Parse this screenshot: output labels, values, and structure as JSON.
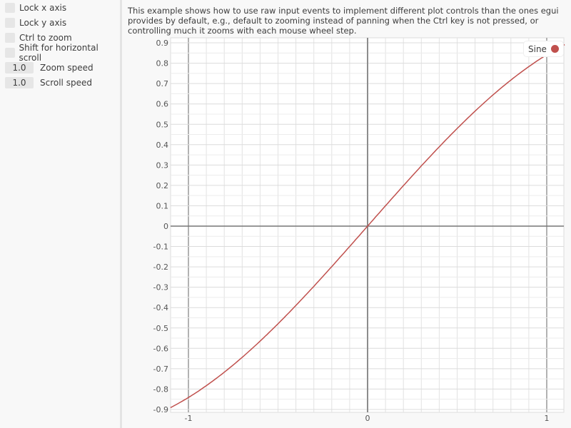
{
  "sidebar": {
    "checkboxes": [
      {
        "label": "Lock x axis",
        "checked": false
      },
      {
        "label": "Lock y axis",
        "checked": false
      },
      {
        "label": "Ctrl to zoom",
        "checked": false
      },
      {
        "label": "Shift for horizontal scroll",
        "checked": false
      }
    ],
    "drag_values": [
      {
        "value": "1.0",
        "label": "Zoom speed"
      },
      {
        "value": "1.0",
        "label": "Scroll speed"
      }
    ]
  },
  "description": "This example shows how to use raw input events to implement different plot controls than the ones egui provides by default, e.g., default to zooming instead of panning when the Ctrl key is not pressed, or controlling much it zooms with each mouse wheel step.",
  "legend": {
    "label": "Sine",
    "color": "#c0504d"
  },
  "chart_data": {
    "type": "line",
    "series": [
      {
        "name": "Sine",
        "function": "sin(x)",
        "color": "#c0504d"
      }
    ],
    "xlim": [
      -1.1,
      1.1
    ],
    "ylim": [
      -0.914,
      0.925
    ],
    "x_ticks": [
      "-1",
      "0",
      "1"
    ],
    "y_ticks": [
      "0.9",
      "0.8",
      "0.7",
      "0.6",
      "0.5",
      "0.4",
      "0.3",
      "0.2",
      "0.1",
      "0",
      "-0.1",
      "-0.2",
      "-0.3",
      "-0.4",
      "-0.5",
      "-0.6",
      "-0.7",
      "-0.8",
      "-0.9"
    ],
    "grid": true,
    "legend": "top-right"
  }
}
